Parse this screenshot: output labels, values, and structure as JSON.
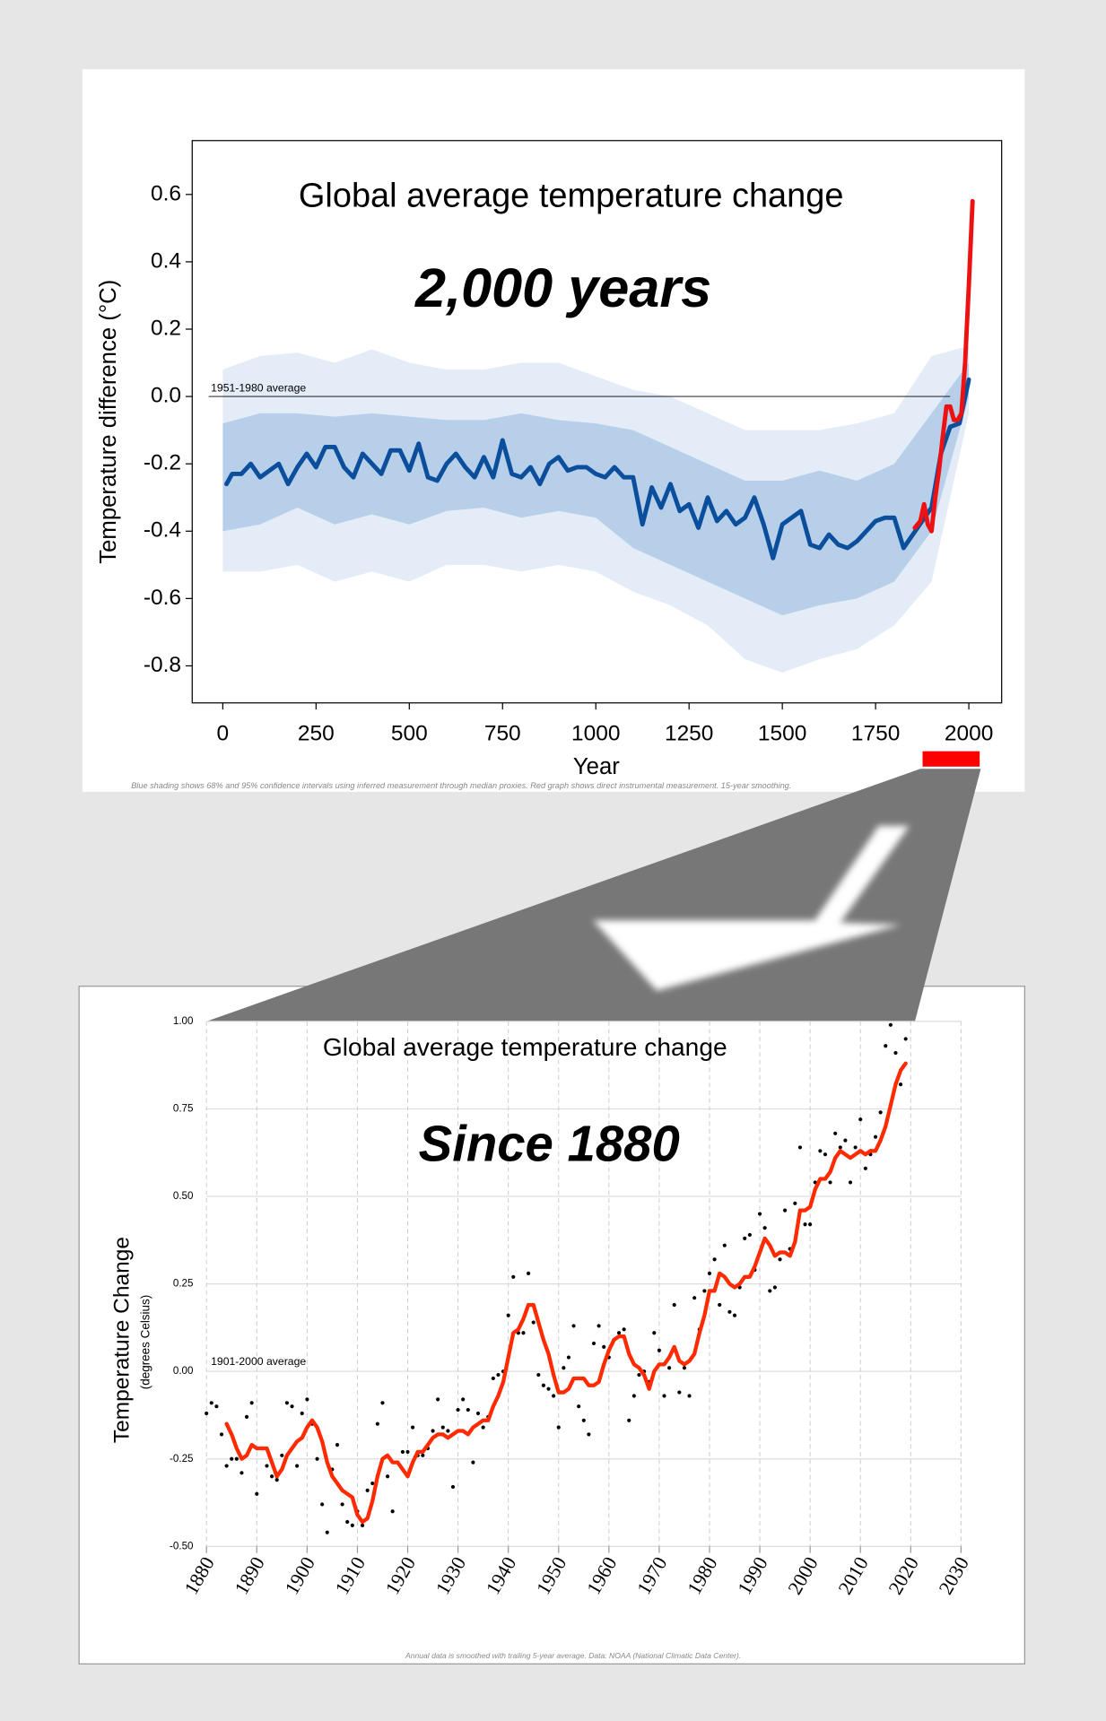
{
  "chart_data": [
    {
      "type": "line",
      "title": "Global average temperature change",
      "subtitle": "2,000 years",
      "x_label": "Year",
      "y_label": "Temperature difference (°C)",
      "annotation": "1951-1980 average",
      "reference_value": 0,
      "note": "Blue shading shows 68% and 95% confidence intervals using inferred measurement through median proxies. Red graph shows direct instrumental measurement. 15-year smoothing.",
      "xlim": [
        -82,
        2088
      ],
      "xticks": [
        0,
        250,
        500,
        750,
        1000,
        1250,
        1500,
        1750,
        2000
      ],
      "ylim": [
        -0.91,
        0.76
      ],
      "yticks": [
        0.6,
        0.4,
        0.2,
        {
          "value": 0,
          "label": "0.0"
        },
        -0.2,
        -0.4,
        -0.6,
        -0.8
      ],
      "grid": false,
      "band_x": [
        0,
        100,
        200,
        300,
        400,
        500,
        600,
        700,
        800,
        900,
        1000,
        1100,
        1200,
        1300,
        1400,
        1500,
        1600,
        1700,
        1800,
        1900,
        2000
      ],
      "bands": [
        {
          "color": "#e3ecf7",
          "upper": [
            0.08,
            0.12,
            0.13,
            0.1,
            0.14,
            0.1,
            0.08,
            0.08,
            0.1,
            0.1,
            0.06,
            0.02,
            0,
            -0.05,
            -0.1,
            -0.1,
            -0.1,
            -0.08,
            -0.05,
            0.12,
            0.15
          ],
          "lower": [
            -0.52,
            -0.52,
            -0.5,
            -0.55,
            -0.52,
            -0.55,
            -0.5,
            -0.5,
            -0.52,
            -0.5,
            -0.52,
            -0.58,
            -0.62,
            -0.68,
            -0.78,
            -0.82,
            -0.78,
            -0.75,
            -0.68,
            -0.55,
            -0.05
          ]
        },
        {
          "color": "#b8cfea",
          "upper": [
            -0.08,
            -0.05,
            -0.05,
            -0.06,
            -0.05,
            -0.06,
            -0.07,
            -0.07,
            -0.05,
            -0.07,
            -0.08,
            -0.1,
            -0.15,
            -0.2,
            -0.25,
            -0.25,
            -0.22,
            -0.25,
            -0.2,
            -0.05,
            0.1
          ],
          "lower": [
            -0.4,
            -0.38,
            -0.33,
            -0.38,
            -0.35,
            -0.38,
            -0.34,
            -0.33,
            -0.36,
            -0.34,
            -0.36,
            -0.45,
            -0.5,
            -0.55,
            -0.6,
            -0.65,
            -0.62,
            -0.6,
            -0.55,
            -0.4,
            0
          ]
        }
      ],
      "series": [
        {
          "color": "#0b4f9c",
          "width": 4,
          "x": [
            10,
            25,
            50,
            75,
            100,
            125,
            150,
            175,
            200,
            225,
            250,
            275,
            300,
            325,
            350,
            375,
            400,
            425,
            450,
            475,
            500,
            525,
            550,
            575,
            600,
            625,
            650,
            675,
            700,
            725,
            750,
            775,
            800,
            825,
            850,
            875,
            900,
            925,
            950,
            975,
            1000,
            1025,
            1050,
            1075,
            1100,
            1125,
            1150,
            1175,
            1200,
            1225,
            1250,
            1275,
            1300,
            1325,
            1350,
            1375,
            1400,
            1425,
            1450,
            1475,
            1500,
            1525,
            1550,
            1575,
            1600,
            1625,
            1650,
            1675,
            1700,
            1725,
            1750,
            1775,
            1800,
            1825,
            1850,
            1875,
            1900,
            1925,
            1950,
            1975,
            2000
          ],
          "values": [
            -0.26,
            -0.23,
            -0.23,
            -0.2,
            -0.24,
            -0.22,
            -0.2,
            -0.26,
            -0.21,
            -0.17,
            -0.21,
            -0.15,
            -0.15,
            -0.21,
            -0.24,
            -0.17,
            -0.2,
            -0.23,
            -0.16,
            -0.16,
            -0.22,
            -0.14,
            -0.24,
            -0.25,
            -0.2,
            -0.17,
            -0.21,
            -0.24,
            -0.18,
            -0.24,
            -0.13,
            -0.23,
            -0.24,
            -0.21,
            -0.26,
            -0.2,
            -0.18,
            -0.22,
            -0.21,
            -0.21,
            -0.23,
            -0.24,
            -0.21,
            -0.24,
            -0.24,
            -0.38,
            -0.27,
            -0.33,
            -0.26,
            -0.34,
            -0.32,
            -0.39,
            -0.3,
            -0.37,
            -0.34,
            -0.38,
            -0.36,
            -0.3,
            -0.38,
            -0.48,
            -0.38,
            -0.36,
            -0.34,
            -0.44,
            -0.45,
            -0.41,
            -0.44,
            -0.45,
            -0.43,
            -0.4,
            -0.37,
            -0.36,
            -0.36,
            -0.45,
            -0.41,
            -0.37,
            -0.33,
            -0.17,
            -0.09,
            -0.08,
            0.05
          ]
        },
        {
          "color": "#ee1111",
          "width": 4,
          "x": [
            1855,
            1870,
            1880,
            1890,
            1900,
            1910,
            1920,
            1930,
            1940,
            1950,
            1960,
            1970,
            1980,
            1990,
            2000,
            2010
          ],
          "values": [
            -0.39,
            -0.37,
            -0.32,
            -0.38,
            -0.4,
            -0.3,
            -0.22,
            -0.12,
            -0.03,
            -0.03,
            -0.07,
            -0.07,
            -0.05,
            0.1,
            0.33,
            0.58
          ]
        }
      ]
    },
    {
      "type": "line",
      "title": "Global average temperature change",
      "subtitle": "Since 1880",
      "y_label": "Temperature Change",
      "y_label_sub": "(degrees Celsius)",
      "annotation": "1901-2000 average",
      "note": "Annual data is smoothed with trailing 5-year average. Data: NOAA (National Climatic Data Center).",
      "xlim": [
        1880,
        2030
      ],
      "xticks": [
        1880,
        1890,
        1900,
        1910,
        1920,
        1930,
        1940,
        1950,
        1960,
        1970,
        1980,
        1990,
        2000,
        2010,
        2020,
        2030
      ],
      "ylim": [
        -0.5,
        1
      ],
      "yticks": [
        {
          "value": 1,
          "label": "1.00"
        },
        0.75,
        {
          "value": 0.5,
          "label": "0.50"
        },
        0.25,
        {
          "value": 0,
          "label": "0.00"
        },
        -0.25,
        {
          "value": -0.5,
          "label": "-0.50"
        }
      ],
      "grid": true,
      "x": [
        1880,
        1881,
        1882,
        1883,
        1884,
        1885,
        1886,
        1887,
        1888,
        1889,
        1890,
        1891,
        1892,
        1893,
        1894,
        1895,
        1896,
        1897,
        1898,
        1899,
        1900,
        1901,
        1902,
        1903,
        1904,
        1905,
        1906,
        1907,
        1908,
        1909,
        1910,
        1911,
        1912,
        1913,
        1914,
        1915,
        1916,
        1917,
        1918,
        1919,
        1920,
        1921,
        1922,
        1923,
        1924,
        1925,
        1926,
        1927,
        1928,
        1929,
        1930,
        1931,
        1932,
        1933,
        1934,
        1935,
        1936,
        1937,
        1938,
        1939,
        1940,
        1941,
        1942,
        1943,
        1944,
        1945,
        1946,
        1947,
        1948,
        1949,
        1950,
        1951,
        1952,
        1953,
        1954,
        1955,
        1956,
        1957,
        1958,
        1959,
        1960,
        1961,
        1962,
        1963,
        1964,
        1965,
        1966,
        1967,
        1968,
        1969,
        1970,
        1971,
        1972,
        1973,
        1974,
        1975,
        1976,
        1977,
        1978,
        1979,
        1980,
        1981,
        1982,
        1983,
        1984,
        1985,
        1986,
        1987,
        1988,
        1989,
        1990,
        1991,
        1992,
        1993,
        1994,
        1995,
        1996,
        1997,
        1998,
        1999,
        2000,
        2001,
        2002,
        2003,
        2004,
        2005,
        2006,
        2007,
        2008,
        2009,
        2010,
        2011,
        2012,
        2013,
        2014,
        2015,
        2016,
        2017,
        2018,
        2019
      ],
      "series": [
        {
          "color": "#000000",
          "marker": "dot",
          "values": [
            -0.12,
            -0.09,
            -0.1,
            -0.18,
            -0.27,
            -0.25,
            -0.25,
            -0.29,
            -0.13,
            -0.09,
            -0.35,
            -0.22,
            -0.27,
            -0.3,
            -0.31,
            -0.24,
            -0.09,
            -0.1,
            -0.27,
            -0.12,
            -0.08,
            -0.15,
            -0.25,
            -0.38,
            -0.46,
            -0.28,
            -0.21,
            -0.38,
            -0.43,
            -0.44,
            -0.4,
            -0.44,
            -0.34,
            -0.32,
            -0.15,
            -0.09,
            -0.3,
            -0.4,
            -0.26,
            -0.23,
            -0.23,
            -0.16,
            -0.24,
            -0.24,
            -0.22,
            -0.17,
            -0.08,
            -0.16,
            -0.17,
            -0.33,
            -0.11,
            -0.08,
            -0.11,
            -0.26,
            -0.12,
            -0.16,
            -0.13,
            -0.02,
            -0.01,
            0,
            0.16,
            0.27,
            0.11,
            0.11,
            0.28,
            0.14,
            -0.01,
            -0.04,
            -0.05,
            -0.07,
            -0.16,
            0.01,
            0.04,
            0.13,
            -0.1,
            -0.14,
            -0.18,
            0.08,
            0.13,
            0.07,
            0.04,
            0.09,
            0.11,
            0.12,
            -0.14,
            -0.07,
            -0.01,
            0,
            -0.03,
            0.11,
            0.06,
            -0.07,
            0.01,
            0.19,
            -0.06,
            0.01,
            -0.07,
            0.21,
            0.12,
            0.23,
            0.28,
            0.32,
            0.19,
            0.36,
            0.17,
            0.16,
            0.24,
            0.38,
            0.39,
            0.29,
            0.45,
            0.41,
            0.23,
            0.24,
            0.32,
            0.46,
            0.35,
            0.48,
            0.64,
            0.42,
            0.42,
            0.54,
            0.63,
            0.62,
            0.54,
            0.68,
            0.64,
            0.66,
            0.54,
            0.64,
            0.72,
            0.58,
            0.62,
            0.67,
            0.74,
            0.93,
            0.99,
            0.91,
            0.82,
            0.95
          ]
        },
        {
          "color": "#ff2a00",
          "width": 3.5,
          "values": [
            null,
            null,
            null,
            null,
            -0.15,
            -0.18,
            -0.22,
            -0.25,
            -0.24,
            -0.21,
            -0.22,
            -0.22,
            -0.22,
            -0.26,
            -0.3,
            -0.28,
            -0.24,
            -0.22,
            -0.2,
            -0.19,
            -0.16,
            -0.14,
            -0.16,
            -0.2,
            -0.26,
            -0.3,
            -0.32,
            -0.34,
            -0.35,
            -0.36,
            -0.41,
            -0.43,
            -0.42,
            -0.37,
            -0.3,
            -0.25,
            -0.24,
            -0.26,
            -0.26,
            -0.28,
            -0.3,
            -0.26,
            -0.23,
            -0.23,
            -0.21,
            -0.19,
            -0.18,
            -0.18,
            -0.19,
            -0.18,
            -0.17,
            -0.17,
            -0.18,
            -0.16,
            -0.15,
            -0.14,
            -0.14,
            -0.1,
            -0.07,
            -0.03,
            0.04,
            0.11,
            0.12,
            0.15,
            0.19,
            0.19,
            0.14,
            0.09,
            0.05,
            -0.01,
            -0.06,
            -0.06,
            -0.05,
            -0.02,
            -0.02,
            -0.02,
            -0.04,
            -0.04,
            -0.03,
            0.02,
            0.06,
            0.09,
            0.1,
            0.1,
            0.05,
            0.02,
            0.01,
            -0.01,
            -0.05,
            0,
            0.02,
            0.02,
            0.04,
            0.07,
            0.03,
            0.02,
            0.03,
            0.05,
            0.11,
            0.16,
            0.23,
            0.23,
            0.28,
            0.27,
            0.25,
            0.24,
            0.25,
            0.27,
            0.27,
            0.3,
            0.34,
            0.38,
            0.36,
            0.33,
            0.34,
            0.34,
            0.33,
            0.37,
            0.46,
            0.46,
            0.47,
            0.52,
            0.55,
            0.55,
            0.57,
            0.61,
            0.63,
            0.62,
            0.61,
            0.62,
            0.63,
            0.62,
            0.63,
            0.63,
            0.66,
            0.7,
            0.76,
            0.82,
            0.86,
            0.88
          ]
        }
      ]
    }
  ]
}
